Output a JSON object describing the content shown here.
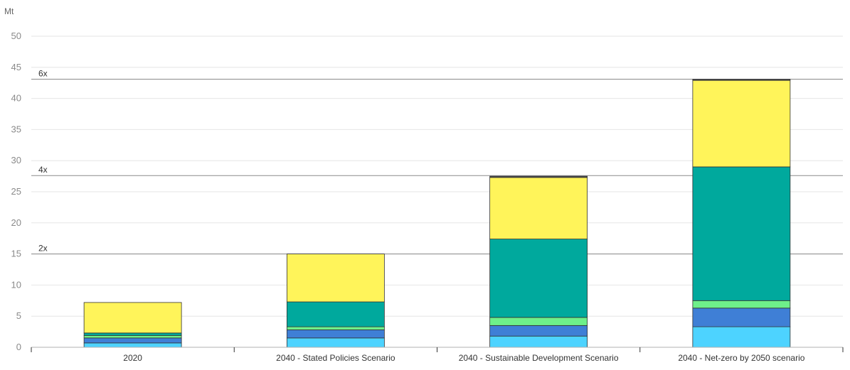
{
  "chart_data": {
    "type": "bar",
    "stacked": true,
    "ylabel": "Mt",
    "ylim": [
      0,
      50
    ],
    "yticks": [
      0,
      5,
      10,
      15,
      20,
      25,
      30,
      35,
      40,
      45,
      50
    ],
    "grid": true,
    "categories": [
      "2020",
      "2040 - Stated Policies Scenario",
      "2040 - Sustainable Development Scenario",
      "2040 - Net-zero by 2050 scenario"
    ],
    "series": [
      {
        "color": "#4dd3ff",
        "values": [
          0.7,
          1.5,
          1.8,
          3.3
        ]
      },
      {
        "color": "#3f7fd6",
        "values": [
          0.8,
          1.3,
          1.7,
          3.0
        ]
      },
      {
        "color": "#6ef08a",
        "values": [
          0.4,
          0.5,
          1.3,
          1.2
        ]
      },
      {
        "color": "#00a99d",
        "values": [
          0.4,
          4.0,
          12.6,
          21.5
        ]
      },
      {
        "color": "#fff45a",
        "values": [
          4.9,
          7.7,
          9.9,
          13.9
        ]
      },
      {
        "color": "#555555",
        "values": [
          0.0,
          0.0,
          0.2,
          0.2
        ]
      }
    ],
    "reference_lines": [
      {
        "label": "2x",
        "value": 15
      },
      {
        "label": "4x",
        "value": 27.6
      },
      {
        "label": "6x",
        "value": 43.1
      }
    ]
  }
}
